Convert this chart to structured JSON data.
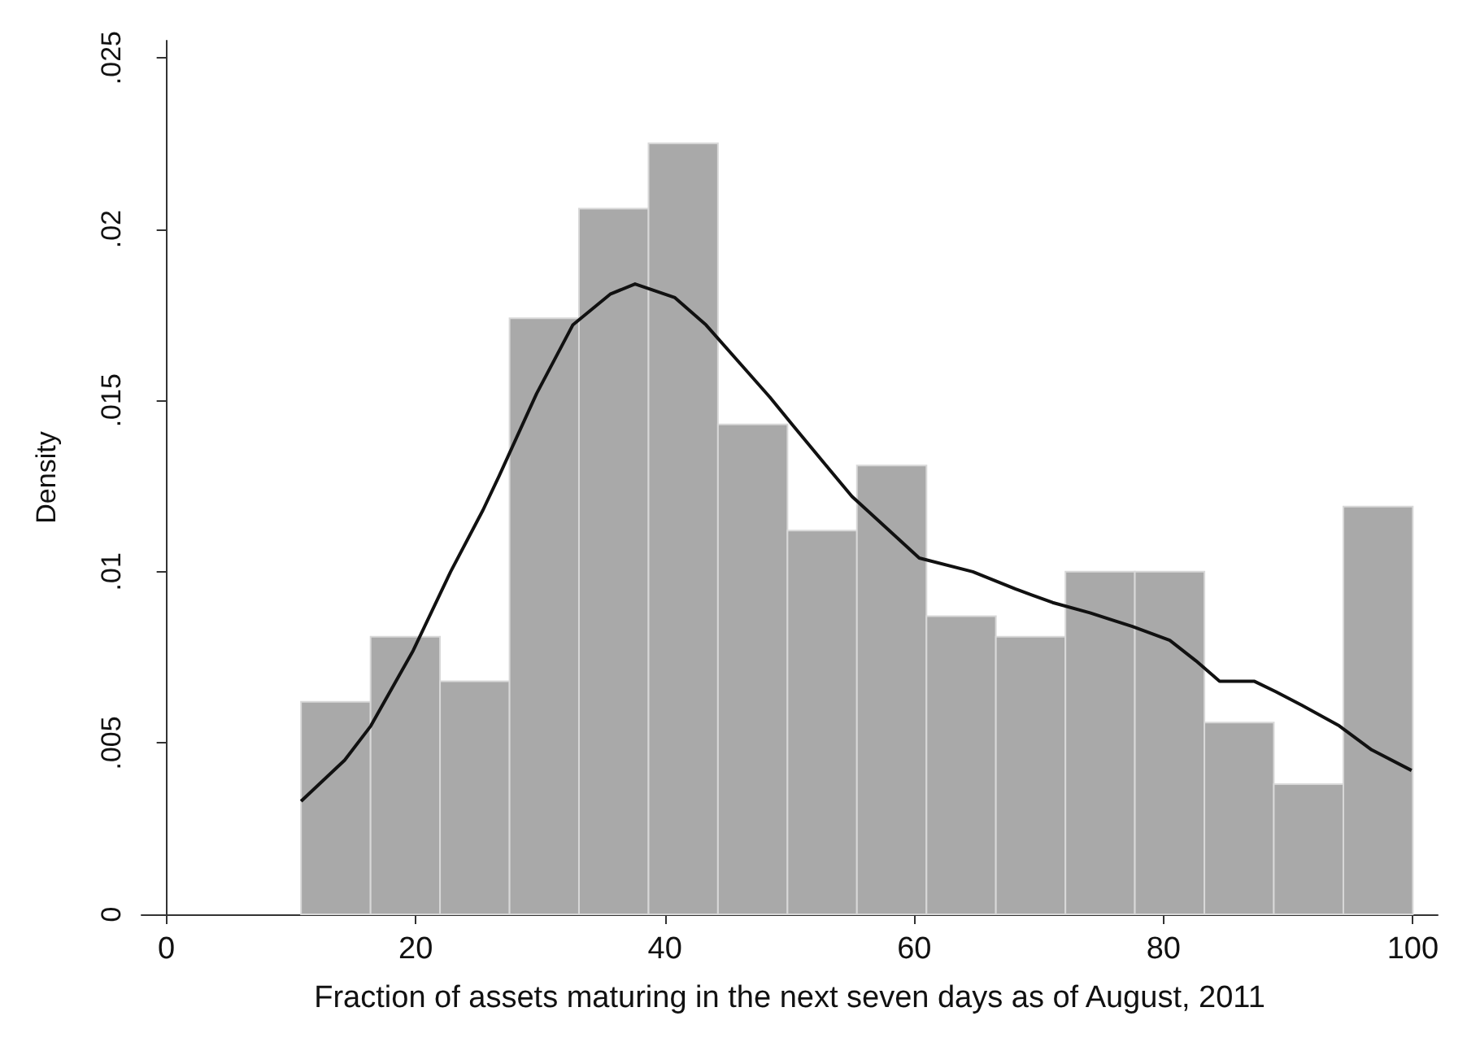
{
  "chart_data": {
    "type": "histogram",
    "xlabel": "Fraction of assets maturing in the next seven days as of August, 2011",
    "ylabel": "Density",
    "bins": [
      10.8,
      16.38,
      21.95,
      27.53,
      33.1,
      38.68,
      44.25,
      49.83,
      55.4,
      60.98,
      66.55,
      72.13,
      77.7,
      83.28,
      88.85,
      94.43,
      100
    ],
    "values": [
      0.0062,
      0.0081,
      0.0068,
      0.0174,
      0.0206,
      0.0225,
      0.0143,
      0.0112,
      0.0131,
      0.0087,
      0.0081,
      0.01,
      0.01,
      0.0056,
      0.0038,
      0.0119
    ],
    "color": "#a9a9a9",
    "series": [
      {
        "type": "line",
        "color": "#111111",
        "x": [
          10.8,
          14.3,
          16.4,
          19.8,
          22.8,
          25.4,
          26.7,
          29.7,
          32.6,
          35.6,
          37.6,
          40.8,
          43.3,
          46.7,
          48.4,
          50.2,
          52.7,
          55.0,
          58.3,
          60.4,
          64.7,
          68.1,
          71.1,
          74.1,
          77.5,
          80.5,
          82.6,
          84.5,
          87.3,
          89.0,
          91.1,
          94.1,
          96.7,
          99.9
        ],
        "values": [
          0.0033,
          0.0045,
          0.0055,
          0.0077,
          0.01,
          0.0118,
          0.0128,
          0.0152,
          0.0172,
          0.0181,
          0.0184,
          0.018,
          0.0172,
          0.0158,
          0.0151,
          0.0143,
          0.0132,
          0.0122,
          0.0111,
          0.0104,
          0.01,
          0.0095,
          0.0091,
          0.0088,
          0.0084,
          0.008,
          0.0074,
          0.0068,
          0.0068,
          0.0065,
          0.0061,
          0.0055,
          0.0048,
          0.0042
        ]
      }
    ],
    "xlim": [
      -2,
      102
    ],
    "xticks": [
      0,
      20,
      40,
      60,
      80,
      100
    ],
    "ylim": [
      0,
      0.0255
    ],
    "yticks": [
      0,
      {
        "value": 0.005,
        "label": ".005"
      },
      {
        "value": 0.01,
        "label": ".01"
      },
      {
        "value": 0.015,
        "label": ".015"
      },
      {
        "value": 0.02,
        "label": ".02"
      },
      {
        "value": 0.025,
        "label": ".025"
      }
    ],
    "grid": false,
    "marker": "none",
    "line_style": "solid"
  }
}
